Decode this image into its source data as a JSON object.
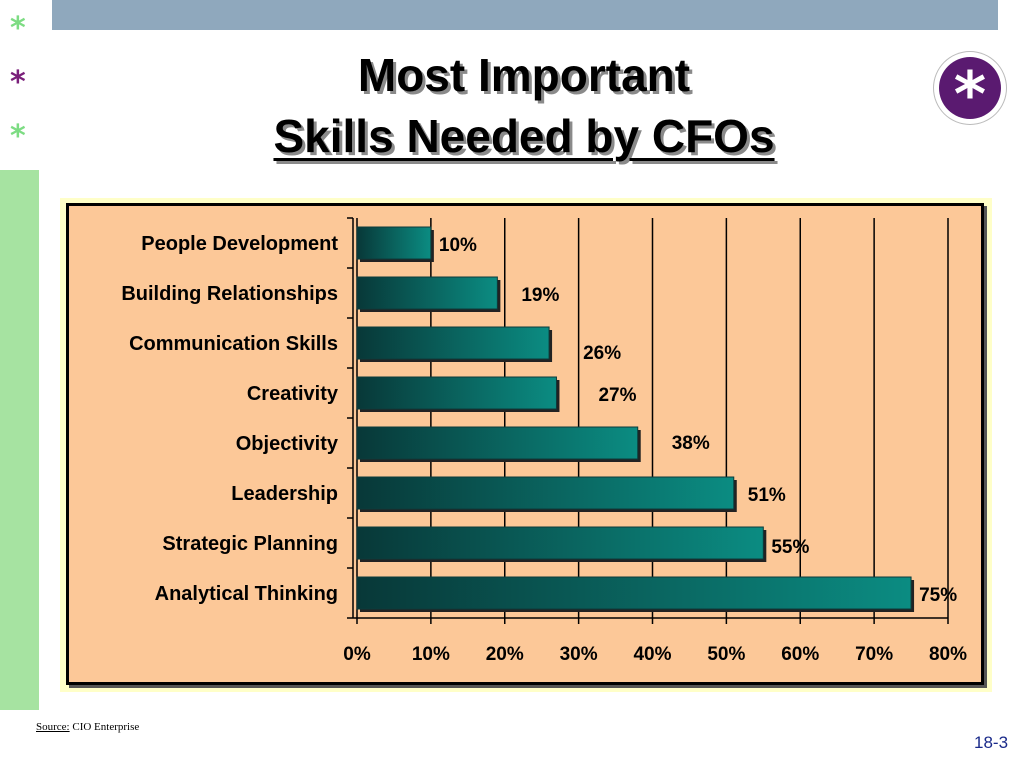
{
  "slide": {
    "title_line1": "Most Important",
    "title_line2": "Skills Needed by CFOs",
    "source_label": "Source:",
    "source_text": " CIO Enterprise",
    "page_number": "18-3"
  },
  "decor": {
    "stars": [
      "*",
      "*",
      "*"
    ],
    "badge_symbol": "*"
  },
  "colors": {
    "top_bar": "#8fa8bd",
    "side_strip": "#a6e3a1",
    "badge": "#5a1a70",
    "plot_background": "#fcc898",
    "bar_dark": "#0a3a3a",
    "bar_light": "#0a8a80"
  },
  "chart_data": {
    "type": "bar",
    "orientation": "horizontal",
    "categories": [
      "People Development",
      "Building Relationships",
      "Communication Skills",
      "Creativity",
      "Objectivity",
      "Leadership",
      "Strategic Planning",
      "Analytical Thinking"
    ],
    "values": [
      10,
      19,
      26,
      27,
      38,
      51,
      55,
      75
    ],
    "data_labels": [
      "10%",
      "19%",
      "26%",
      "27%",
      "38%",
      "51%",
      "55%",
      "75%"
    ],
    "x_ticks": [
      "0%",
      "10%",
      "20%",
      "30%",
      "40%",
      "50%",
      "60%",
      "70%",
      "80%"
    ],
    "xlim": [
      0,
      80
    ],
    "grid": "vertical",
    "legend": "none"
  }
}
